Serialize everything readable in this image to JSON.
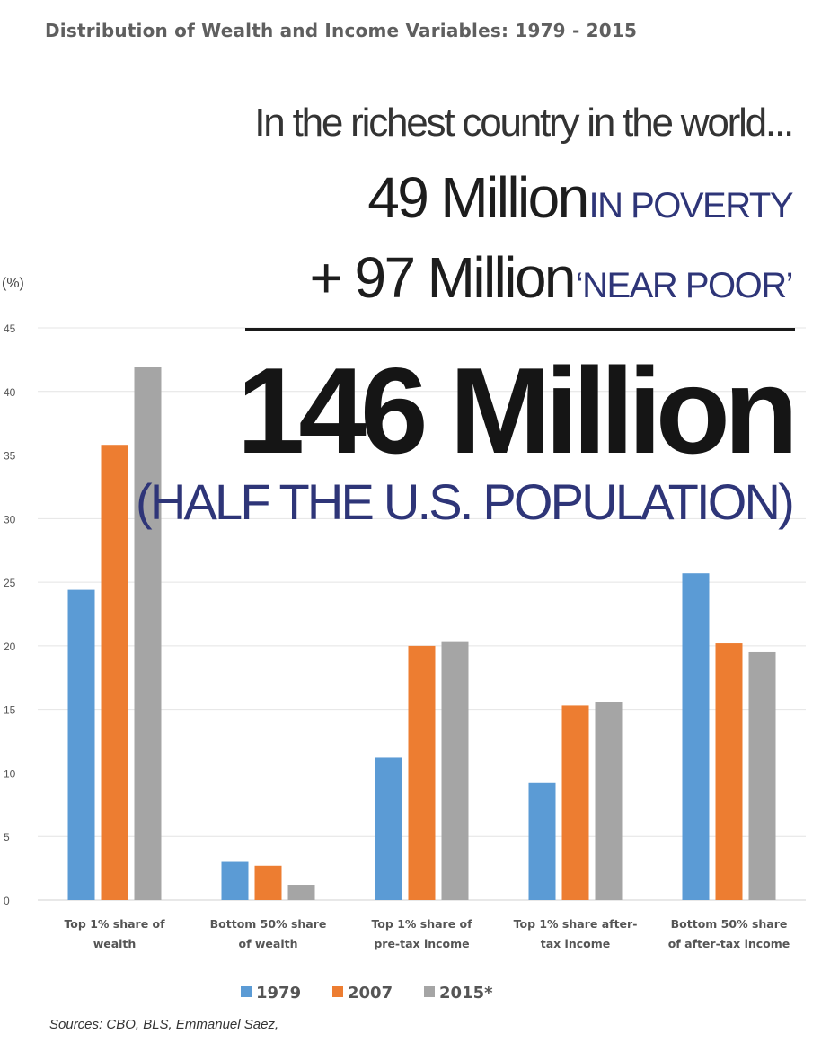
{
  "chart_data": {
    "type": "bar",
    "title": "Distribution of Wealth and Income Variables:  1979 - 2015",
    "ylabel": "(%)",
    "xlabel": "",
    "ylim": [
      0,
      45
    ],
    "yticks": [
      0,
      5,
      10,
      15,
      20,
      25,
      30,
      35,
      40,
      45
    ],
    "grid": true,
    "legend_position": "bottom-center",
    "categories": [
      [
        "Top 1% share of",
        "wealth"
      ],
      [
        "Bottom 50% share",
        "of wealth"
      ],
      [
        "Top 1% share of",
        "pre-tax income"
      ],
      [
        "Top 1% share after-",
        "tax income"
      ],
      [
        "Bottom 50% share",
        "of after-tax income"
      ]
    ],
    "series": [
      {
        "name": "1979",
        "color": "#5b9bd5",
        "values": [
          24.4,
          3.0,
          11.2,
          9.2,
          25.7
        ]
      },
      {
        "name": "2007",
        "color": "#ed7d31",
        "values": [
          35.8,
          2.7,
          20.0,
          15.3,
          20.2
        ]
      },
      {
        "name": "2015*",
        "color": "#a5a5a5",
        "values": [
          41.9,
          1.2,
          20.3,
          15.6,
          19.5
        ]
      }
    ]
  },
  "overlay": {
    "line1": "In the richest country in the world...",
    "line2_big": "49 Million",
    "line2_blue": "IN POVERTY",
    "line3_big": "+ 97 Million",
    "line3_blue": "‘NEAR POOR’",
    "total": "146 Million",
    "subtotal": "(HALF THE U.S. POPULATION)"
  },
  "sources": "Sources:  CBO,  BLS, Emmanuel Saez,"
}
